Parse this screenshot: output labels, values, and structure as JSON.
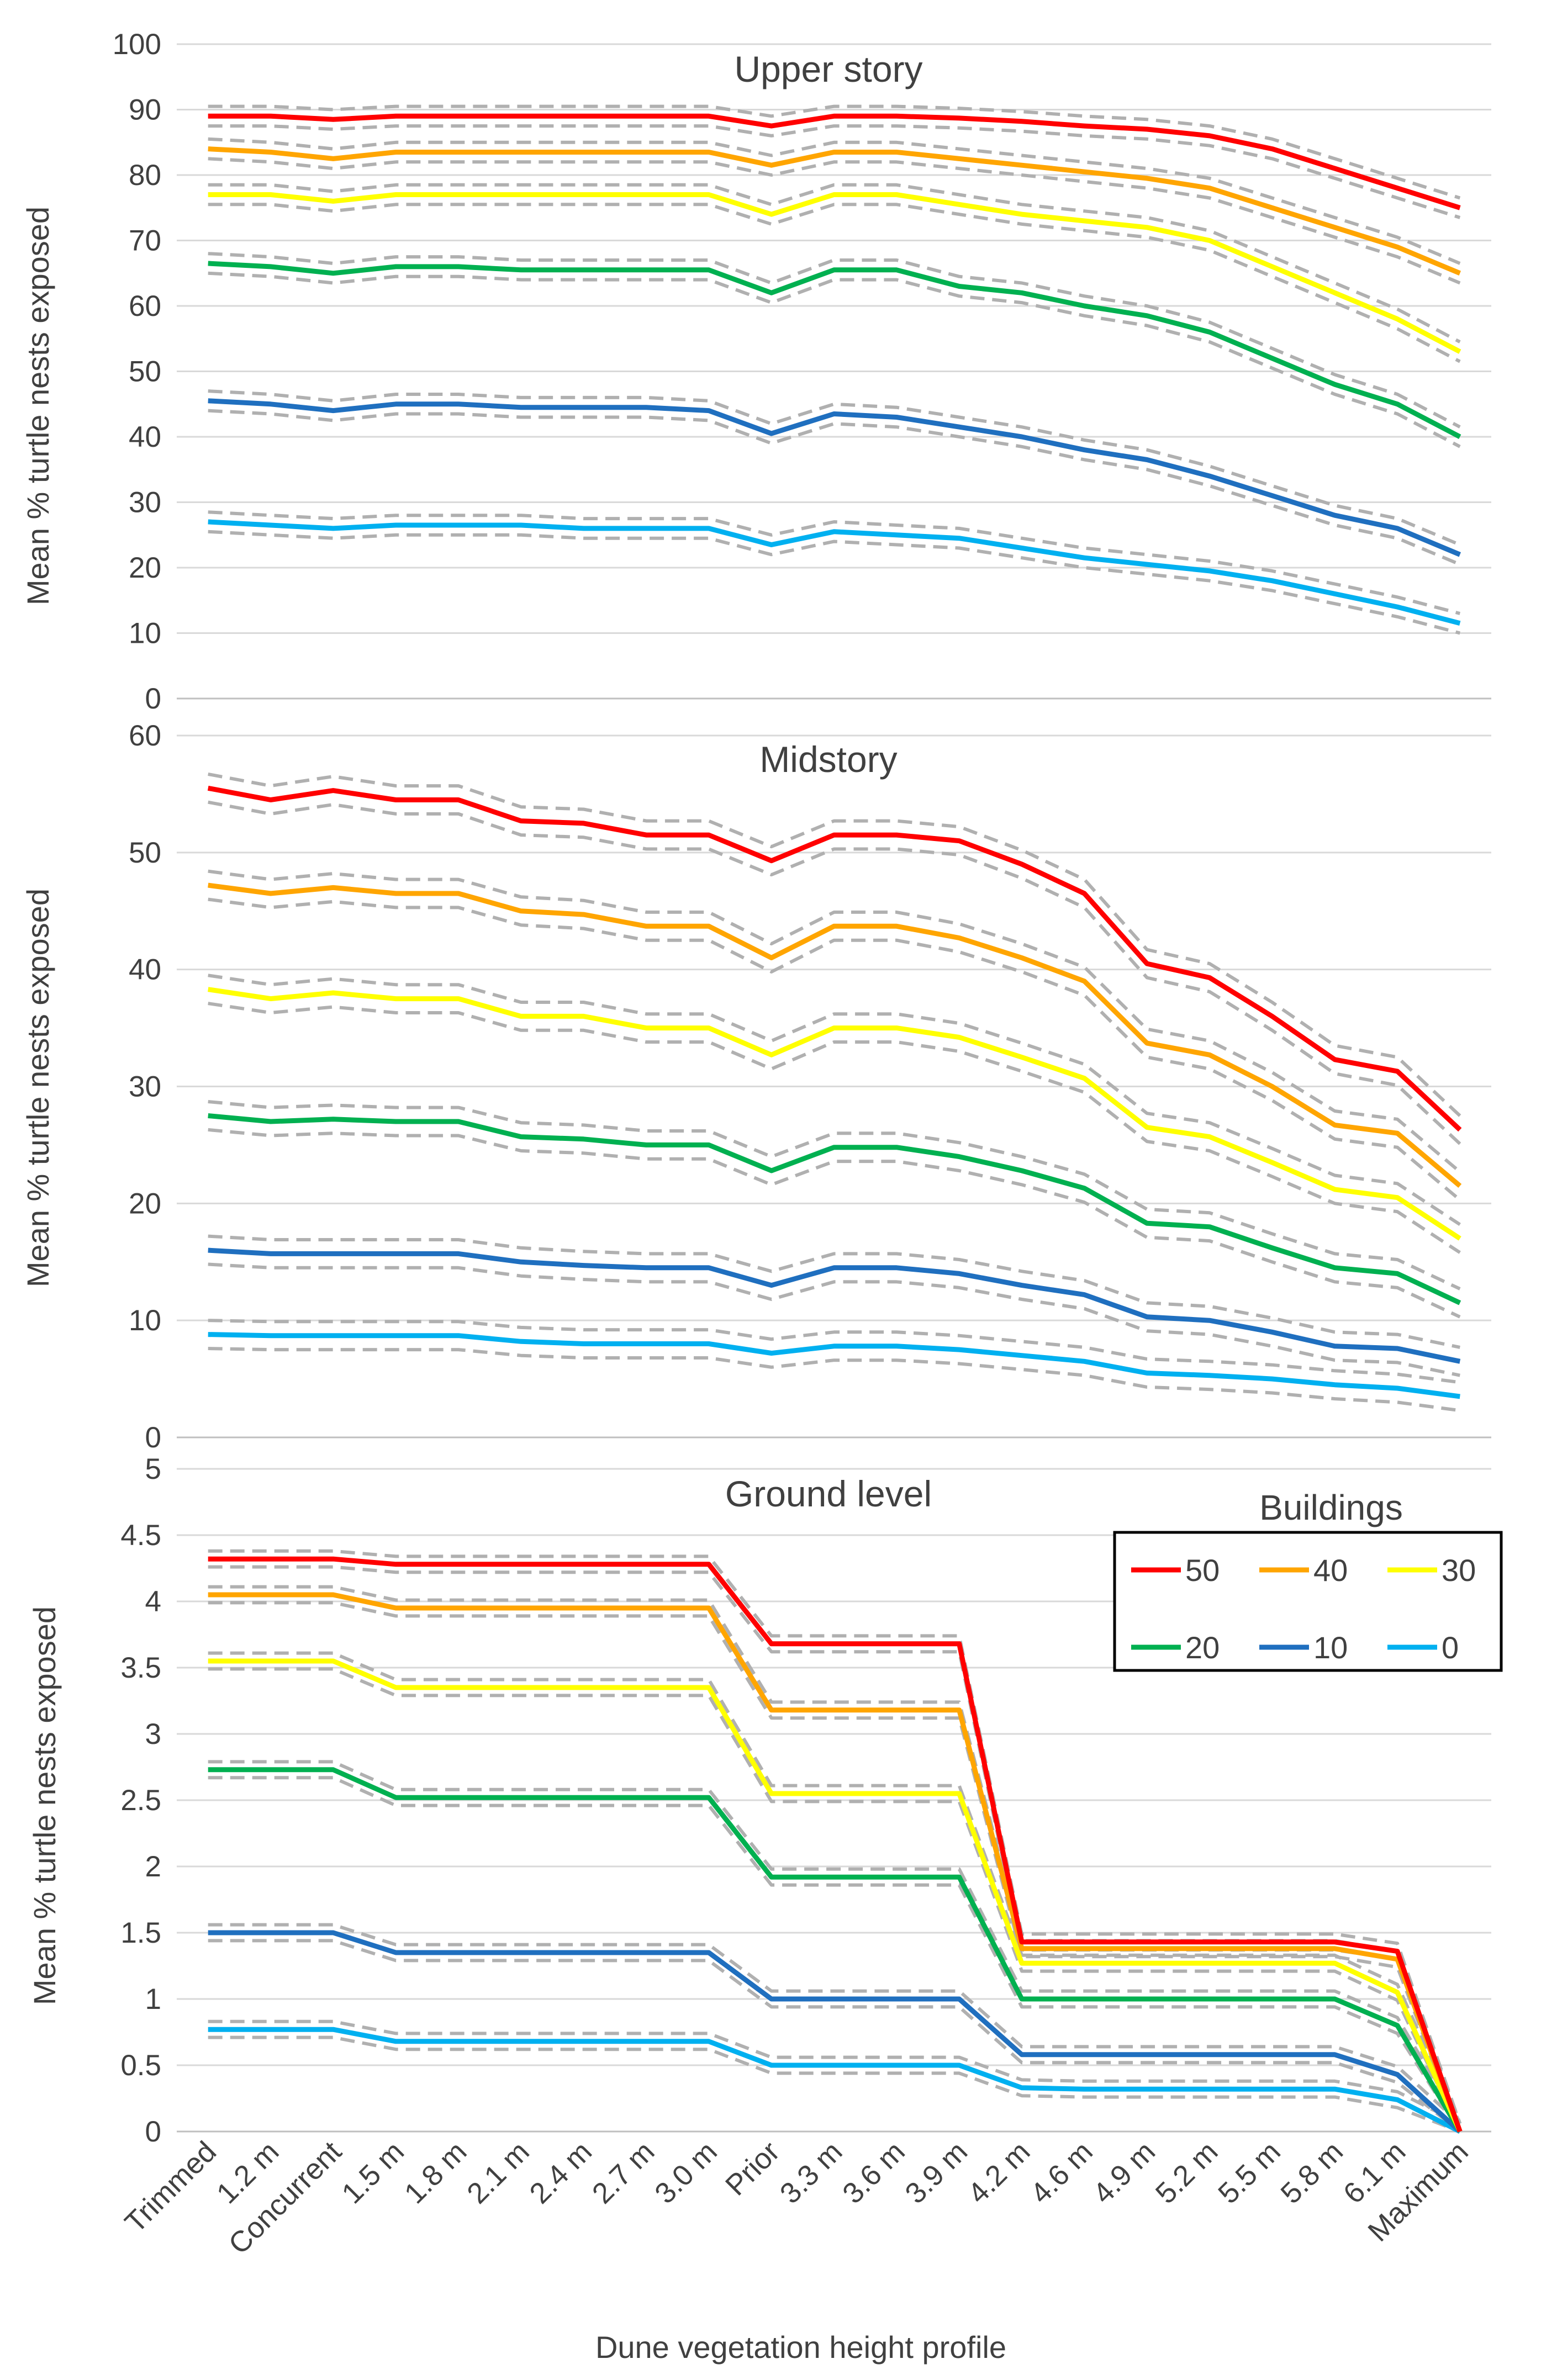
{
  "figure": {
    "xlabel": "Dune vegetation height profile",
    "ylabel": "Mean % turtle nests exposed",
    "legend_title": "Buildings"
  },
  "categories": [
    "Trimmed",
    "1.2 m",
    "Concurrent",
    "1.5 m",
    "1.8 m",
    "2.1 m",
    "2.4 m",
    "2.7 m",
    "3.0 m",
    "Prior",
    "3.3 m",
    "3.6 m",
    "3.9 m",
    "4.2 m",
    "4.6 m",
    "4.9 m",
    "5.2 m",
    "5.5 m",
    "5.8 m",
    "6.1 m",
    "Maximum"
  ],
  "series_meta": [
    {
      "name": "50",
      "color": "#ff0000"
    },
    {
      "name": "40",
      "color": "#ffa500"
    },
    {
      "name": "30",
      "color": "#ffff00"
    },
    {
      "name": "20",
      "color": "#00b050"
    },
    {
      "name": "10",
      "color": "#1f6fbf"
    },
    {
      "name": "0",
      "color": "#00b0f0"
    }
  ],
  "ci_color": "#b0b0b0",
  "chart_data": [
    {
      "type": "line",
      "title": "Upper story",
      "xlabel": "",
      "ylabel": "Mean % turtle nests exposed",
      "ylim": [
        0,
        100
      ],
      "yticks": [
        0,
        10,
        20,
        30,
        40,
        50,
        60,
        70,
        80,
        90,
        100
      ],
      "ytick_labels": [
        "0",
        "10",
        "20",
        "30",
        "40",
        "50",
        "60",
        "70",
        "80",
        "90",
        "100"
      ],
      "grid": true,
      "ci_half_width": 1.5,
      "series": [
        {
          "name": "50",
          "values": [
            89,
            89,
            88.5,
            89,
            89,
            89,
            89,
            89,
            89,
            87.5,
            89,
            89,
            88.7,
            88.2,
            87.5,
            87,
            86,
            84,
            81,
            78,
            75
          ]
        },
        {
          "name": "40",
          "values": [
            84,
            83.5,
            82.5,
            83.5,
            83.5,
            83.5,
            83.5,
            83.5,
            83.5,
            81.5,
            83.5,
            83.5,
            82.5,
            81.5,
            80.5,
            79.5,
            78,
            75,
            72,
            69,
            65
          ]
        },
        {
          "name": "30",
          "values": [
            77,
            77,
            76,
            77,
            77,
            77,
            77,
            77,
            77,
            74,
            77,
            77,
            75.5,
            74,
            73,
            72,
            70,
            66,
            62,
            58,
            53
          ]
        },
        {
          "name": "20",
          "values": [
            66.5,
            66,
            65,
            66,
            66,
            65.5,
            65.5,
            65.5,
            65.5,
            62,
            65.5,
            65.5,
            63,
            62,
            60,
            58.5,
            56,
            52,
            48,
            45,
            40
          ]
        },
        {
          "name": "10",
          "values": [
            45.5,
            45,
            44,
            45,
            45,
            44.5,
            44.5,
            44.5,
            44,
            40.5,
            43.5,
            43,
            41.5,
            40,
            38,
            36.5,
            34,
            31,
            28,
            26,
            22
          ]
        },
        {
          "name": "0",
          "values": [
            27,
            26.5,
            26,
            26.5,
            26.5,
            26.5,
            26,
            26,
            26,
            23.5,
            25.5,
            25,
            24.5,
            23,
            21.5,
            20.5,
            19.5,
            18,
            16,
            14,
            11.5
          ]
        }
      ]
    },
    {
      "type": "line",
      "title": "Midstory",
      "xlabel": "",
      "ylabel": "Mean % turtle nests exposed",
      "ylim": [
        0,
        60
      ],
      "yticks": [
        0,
        10,
        20,
        30,
        40,
        50,
        60
      ],
      "ytick_labels": [
        "0",
        "10",
        "20",
        "30",
        "40",
        "50",
        "60"
      ],
      "grid": true,
      "ci_half_width": 1.2,
      "series": [
        {
          "name": "50",
          "values": [
            55.5,
            54.5,
            55.3,
            54.5,
            54.5,
            52.7,
            52.5,
            51.5,
            51.5,
            49.3,
            51.5,
            51.5,
            51,
            49,
            46.5,
            40.5,
            39.3,
            36,
            32.3,
            31.3,
            26.3
          ]
        },
        {
          "name": "40",
          "values": [
            47.2,
            46.5,
            47,
            46.5,
            46.5,
            45,
            44.7,
            43.7,
            43.7,
            41,
            43.7,
            43.7,
            42.7,
            41,
            39,
            33.7,
            32.7,
            30,
            26.7,
            26,
            21.5
          ]
        },
        {
          "name": "30",
          "values": [
            38.3,
            37.5,
            38,
            37.5,
            37.5,
            36,
            36,
            35,
            35,
            32.7,
            35,
            35,
            34.2,
            32.5,
            30.7,
            26.5,
            25.7,
            23.5,
            21.2,
            20.5,
            17
          ]
        },
        {
          "name": "20",
          "values": [
            27.5,
            27,
            27.2,
            27,
            27,
            25.7,
            25.5,
            25,
            25,
            22.8,
            24.8,
            24.8,
            24,
            22.8,
            21.3,
            18.3,
            18,
            16.2,
            14.5,
            14,
            11.5
          ]
        },
        {
          "name": "10",
          "values": [
            16,
            15.7,
            15.7,
            15.7,
            15.7,
            15,
            14.7,
            14.5,
            14.5,
            13,
            14.5,
            14.5,
            14,
            13,
            12.2,
            10.3,
            10,
            9,
            7.8,
            7.6,
            6.5
          ]
        },
        {
          "name": "0",
          "values": [
            8.8,
            8.7,
            8.7,
            8.7,
            8.7,
            8.2,
            8,
            8,
            8,
            7.2,
            7.8,
            7.8,
            7.5,
            7,
            6.5,
            5.5,
            5.3,
            5,
            4.5,
            4.2,
            3.5
          ]
        }
      ]
    },
    {
      "type": "line",
      "title": "Ground level",
      "xlabel": "Dune vegetation height profile",
      "ylabel": "Mean % turtle nests exposed",
      "ylim": [
        0,
        5
      ],
      "yticks": [
        0,
        0.5,
        1,
        1.5,
        2,
        2.5,
        3,
        3.5,
        4,
        4.5,
        5
      ],
      "ytick_labels": [
        "0",
        "0.5",
        "1",
        "1.5",
        "2",
        "2.5",
        "3",
        "3.5",
        "4",
        "4.5",
        "5"
      ],
      "grid": true,
      "ci_half_width": 0.06,
      "legend": {
        "title": "Buildings",
        "entries": [
          "50",
          "40",
          "30",
          "20",
          "10",
          "0"
        ],
        "location": "top-right"
      },
      "series": [
        {
          "name": "50",
          "values": [
            4.32,
            4.32,
            4.32,
            4.28,
            4.28,
            4.28,
            4.28,
            4.28,
            4.28,
            3.68,
            3.68,
            3.68,
            3.68,
            1.43,
            1.43,
            1.43,
            1.43,
            1.43,
            1.43,
            1.36,
            0
          ]
        },
        {
          "name": "40",
          "values": [
            4.05,
            4.05,
            4.05,
            3.95,
            3.95,
            3.95,
            3.95,
            3.95,
            3.95,
            3.18,
            3.18,
            3.18,
            3.18,
            1.38,
            1.38,
            1.38,
            1.38,
            1.38,
            1.38,
            1.3,
            0
          ]
        },
        {
          "name": "30",
          "values": [
            3.55,
            3.55,
            3.55,
            3.35,
            3.35,
            3.35,
            3.35,
            3.35,
            3.35,
            2.55,
            2.55,
            2.55,
            2.55,
            1.27,
            1.27,
            1.27,
            1.27,
            1.27,
            1.27,
            1.05,
            0
          ]
        },
        {
          "name": "20",
          "values": [
            2.73,
            2.73,
            2.73,
            2.52,
            2.52,
            2.52,
            2.52,
            2.52,
            2.52,
            1.92,
            1.92,
            1.92,
            1.92,
            1.0,
            1.0,
            1.0,
            1.0,
            1.0,
            1.0,
            0.8,
            0
          ]
        },
        {
          "name": "10",
          "values": [
            1.5,
            1.5,
            1.5,
            1.35,
            1.35,
            1.35,
            1.35,
            1.35,
            1.35,
            1.0,
            1.0,
            1.0,
            1.0,
            0.58,
            0.58,
            0.58,
            0.58,
            0.58,
            0.58,
            0.43,
            0
          ]
        },
        {
          "name": "0",
          "values": [
            0.77,
            0.77,
            0.77,
            0.68,
            0.68,
            0.68,
            0.68,
            0.68,
            0.68,
            0.5,
            0.5,
            0.5,
            0.5,
            0.33,
            0.32,
            0.32,
            0.32,
            0.32,
            0.32,
            0.24,
            0
          ]
        }
      ]
    }
  ]
}
